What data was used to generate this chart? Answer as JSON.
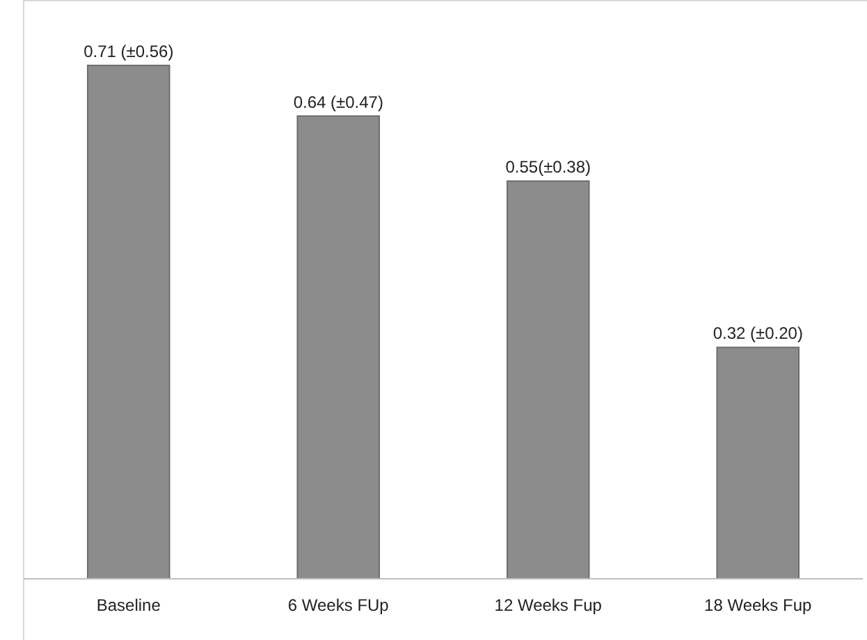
{
  "chart_data": {
    "type": "bar",
    "categories": [
      "Baseline",
      "6 Weeks FUp",
      "12 Weeks Fup",
      "18 Weeks Fup"
    ],
    "values": [
      0.71,
      0.64,
      0.55,
      0.32
    ],
    "value_labels": [
      "0.71 (±0.56)",
      "0.64 (±0.47)",
      "0.55(±0.38)",
      "0.32 (±0.20)"
    ],
    "color": "#8c8c8c"
  }
}
